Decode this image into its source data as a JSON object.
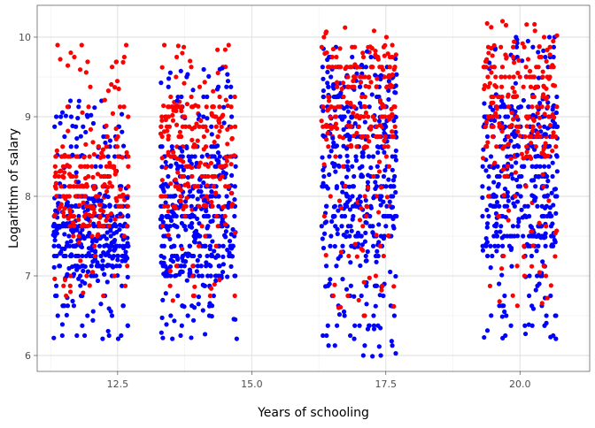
{
  "chart_data": {
    "type": "scatter",
    "title": "",
    "xlabel": "Years of schooling",
    "ylabel": "Logarithm of salary",
    "xlim": [
      11.0,
      21.3
    ],
    "ylim": [
      5.8,
      10.4
    ],
    "x_ticks": [
      12.5,
      15.0,
      17.5,
      20.0
    ],
    "x_tick_labels": [
      "12.5",
      "15.0",
      "17.5",
      "20.0"
    ],
    "y_ticks": [
      6,
      7,
      8,
      9,
      10
    ],
    "y_tick_labels": [
      "6",
      "7",
      "8",
      "9",
      "10"
    ],
    "grid": true,
    "legend": "none",
    "colors": {
      "series_red": "#ff0000",
      "series_blue": "#0000ff",
      "grid_major": "#dedede",
      "grid_minor": "#ebebeb",
      "panel_border": "#333333"
    },
    "groups": [
      {
        "x_range": [
          11.3,
          12.7
        ],
        "blue_y_range": [
          6.2,
          9.2
        ],
        "blue_core": [
          7.0,
          8.0
        ],
        "red_y_range": [
          6.7,
          9.9
        ],
        "red_core": [
          7.6,
          8.6
        ]
      },
      {
        "x_range": [
          13.3,
          14.7
        ],
        "blue_y_range": [
          6.2,
          9.6
        ],
        "blue_core": [
          7.0,
          8.6
        ],
        "red_y_range": [
          6.7,
          9.9
        ],
        "red_core": [
          7.8,
          9.2
        ]
      },
      {
        "x_range": [
          16.3,
          17.7
        ],
        "blue_y_range": [
          6.0,
          9.9
        ],
        "blue_core": [
          7.3,
          9.6
        ],
        "red_y_range": [
          6.5,
          10.1
        ],
        "red_core": [
          8.6,
          9.9
        ]
      },
      {
        "x_range": [
          19.3,
          20.7
        ],
        "blue_y_range": [
          6.2,
          10.0
        ],
        "blue_core": [
          7.3,
          9.2
        ],
        "red_y_range": [
          6.6,
          10.2
        ],
        "red_core": [
          8.4,
          9.9
        ]
      }
    ],
    "series": [
      {
        "color": "#0000ff",
        "points": [
          [
            11.42,
            7.61
          ],
          [
            11.88,
            7.47
          ],
          [
            12.35,
            7.89
          ],
          [
            11.56,
            7.02
          ],
          [
            12.61,
            7.35
          ],
          [
            11.73,
            8.3
          ],
          [
            12.12,
            7.17
          ],
          [
            11.95,
            7.71
          ],
          [
            12.48,
            7.55
          ],
          [
            11.39,
            7.91
          ],
          [
            11.66,
            8.52
          ],
          [
            12.27,
            8.01
          ],
          [
            11.84,
            6.93
          ],
          [
            12.55,
            7.78
          ],
          [
            11.51,
            7.34
          ],
          [
            12.03,
            7.43
          ],
          [
            11.77,
            8.18
          ],
          [
            12.41,
            7.23
          ],
          [
            11.34,
            7.82
          ],
          [
            12.68,
            7.98
          ],
          [
            12.2,
            9.2
          ],
          [
            11.62,
            9.2
          ],
          [
            11.47,
            6.39
          ],
          [
            12.22,
            6.21
          ],
          [
            11.31,
            6.22
          ],
          [
            12.51,
            6.21
          ],
          [
            11.93,
            9.02
          ],
          [
            12.36,
            8.7
          ],
          [
            13.42,
            7.74
          ],
          [
            13.88,
            7.61
          ],
          [
            14.25,
            8.06
          ],
          [
            13.56,
            7.25
          ],
          [
            14.51,
            7.49
          ],
          [
            13.73,
            8.33
          ],
          [
            14.12,
            7.95
          ],
          [
            13.95,
            7.84
          ],
          [
            14.38,
            8.44
          ],
          [
            13.39,
            7.12
          ],
          [
            13.66,
            8.61
          ],
          [
            14.27,
            7.69
          ],
          [
            13.84,
            7.03
          ],
          [
            14.55,
            7.88
          ],
          [
            13.51,
            7.81
          ],
          [
            14.03,
            8.21
          ],
          [
            13.77,
            7.58
          ],
          [
            14.61,
            7.36
          ],
          [
            13.34,
            8.12
          ],
          [
            14.68,
            7.96
          ],
          [
            14.45,
            9.61
          ],
          [
            13.61,
            9.2
          ],
          [
            14.21,
            6.62
          ],
          [
            13.41,
            6.39
          ],
          [
            13.52,
            6.21
          ],
          [
            14.72,
            6.21
          ],
          [
            14.02,
            9.02
          ],
          [
            14.33,
            6.94
          ],
          [
            13.93,
            7.43
          ],
          [
            14.17,
            8.52
          ],
          [
            16.42,
            8.1
          ],
          [
            16.88,
            7.71
          ],
          [
            17.35,
            8.55
          ],
          [
            16.56,
            8.31
          ],
          [
            17.61,
            7.86
          ],
          [
            16.73,
            9.0
          ],
          [
            17.12,
            7.54
          ],
          [
            16.95,
            8.45
          ],
          [
            17.48,
            8.9
          ],
          [
            16.39,
            7.68
          ],
          [
            16.66,
            9.3
          ],
          [
            17.27,
            7.98
          ],
          [
            16.84,
            7.17
          ],
          [
            17.55,
            8.21
          ],
          [
            16.51,
            8.73
          ],
          [
            17.03,
            7.93
          ],
          [
            16.77,
            8.6
          ],
          [
            17.41,
            9.52
          ],
          [
            16.34,
            7.35
          ],
          [
            17.68,
            8.05
          ],
          [
            16.61,
            7.82
          ],
          [
            17.22,
            8.36
          ],
          [
            17.05,
            9.65
          ],
          [
            16.45,
            6.9
          ],
          [
            17.31,
            6.62
          ],
          [
            16.91,
            6.21
          ],
          [
            16.72,
            6.55
          ],
          [
            17.08,
            6.0
          ],
          [
            17.25,
            5.99
          ],
          [
            17.58,
            7.05
          ],
          [
            16.48,
            8.98
          ],
          [
            17.15,
            9.82
          ],
          [
            16.82,
            8.12
          ],
          [
            17.46,
            7.47
          ],
          [
            19.42,
            8.1
          ],
          [
            19.88,
            7.91
          ],
          [
            20.35,
            8.25
          ],
          [
            19.56,
            7.55
          ],
          [
            20.61,
            8.42
          ],
          [
            19.73,
            9.0
          ],
          [
            20.12,
            7.74
          ],
          [
            19.95,
            8.52
          ],
          [
            20.48,
            8.78
          ],
          [
            19.39,
            7.61
          ],
          [
            19.66,
            9.2
          ],
          [
            20.27,
            7.95
          ],
          [
            19.84,
            7.35
          ],
          [
            20.55,
            8.63
          ],
          [
            19.51,
            8.36
          ],
          [
            20.03,
            7.83
          ],
          [
            19.77,
            8.05
          ],
          [
            20.45,
            7.48
          ],
          [
            19.31,
            7.32
          ],
          [
            20.68,
            9.05
          ],
          [
            20.15,
            9.95
          ],
          [
            19.61,
            6.9
          ],
          [
            20.36,
            6.9
          ],
          [
            19.71,
            6.55
          ],
          [
            20.67,
            6.21
          ],
          [
            20.42,
            7.18
          ],
          [
            19.92,
            9.42
          ],
          [
            20.22,
            8.2
          ]
        ]
      },
      {
        "color": "#ff0000",
        "points": [
          [
            11.45,
            7.9
          ],
          [
            11.92,
            8.15
          ],
          [
            12.35,
            8.42
          ],
          [
            11.58,
            7.72
          ],
          [
            12.6,
            8.02
          ],
          [
            11.75,
            8.5
          ],
          [
            12.13,
            8.28
          ],
          [
            11.94,
            9.69
          ],
          [
            12.47,
            8.85
          ],
          [
            11.38,
            9.9
          ],
          [
            11.67,
            7.67
          ],
          [
            12.26,
            9.21
          ],
          [
            11.83,
            9.9
          ],
          [
            12.52,
            9.35
          ],
          [
            11.52,
            6.95
          ],
          [
            12.04,
            8.68
          ],
          [
            11.78,
            7.42
          ],
          [
            12.41,
            9.04
          ],
          [
            11.35,
            8.1
          ],
          [
            12.66,
            9.9
          ],
          [
            11.62,
            6.8
          ],
          [
            12.18,
            7.89
          ],
          [
            13.44,
            8.52
          ],
          [
            13.89,
            8.85
          ],
          [
            14.26,
            9.02
          ],
          [
            13.58,
            8.21
          ],
          [
            14.52,
            9.21
          ],
          [
            13.74,
            9.42
          ],
          [
            14.13,
            8.4
          ],
          [
            13.93,
            8.65
          ],
          [
            14.37,
            9.55
          ],
          [
            13.37,
            9.9
          ],
          [
            13.68,
            8.08
          ],
          [
            14.28,
            9.32
          ],
          [
            13.85,
            9.7
          ],
          [
            14.57,
            9.9
          ],
          [
            13.53,
            6.69
          ],
          [
            14.05,
            8.95
          ],
          [
            13.79,
            7.98
          ],
          [
            14.63,
            8.72
          ],
          [
            13.33,
            9.62
          ],
          [
            14.69,
            7.54
          ],
          [
            14.4,
            6.95
          ],
          [
            13.62,
            8.3
          ],
          [
            16.44,
            9.2
          ],
          [
            16.89,
            9.45
          ],
          [
            17.36,
            9.72
          ],
          [
            16.57,
            8.91
          ],
          [
            17.62,
            9.9
          ],
          [
            16.74,
            10.12
          ],
          [
            17.13,
            9.05
          ],
          [
            16.96,
            9.62
          ],
          [
            17.47,
            8.7
          ],
          [
            16.38,
            10.05
          ],
          [
            16.68,
            9.35
          ],
          [
            17.28,
            10.08
          ],
          [
            16.85,
            8.64
          ],
          [
            17.56,
            9.52
          ],
          [
            16.52,
            9.85
          ],
          [
            17.04,
            7.85
          ],
          [
            16.78,
            9.18
          ],
          [
            17.42,
            6.82
          ],
          [
            16.35,
            8.4
          ],
          [
            17.69,
            9.78
          ],
          [
            16.62,
            6.6
          ],
          [
            17.21,
            9.88
          ],
          [
            17.07,
            7.32
          ],
          [
            16.47,
            8.99
          ],
          [
            19.44,
            9.42
          ],
          [
            19.89,
            9.68
          ],
          [
            20.36,
            9.88
          ],
          [
            19.57,
            9.1
          ],
          [
            20.62,
            9.95
          ],
          [
            19.74,
            10.15
          ],
          [
            20.13,
            8.88
          ],
          [
            19.96,
            9.55
          ],
          [
            20.49,
            9.22
          ],
          [
            19.38,
            9.72
          ],
          [
            19.68,
            8.6
          ],
          [
            20.28,
            10.08
          ],
          [
            19.85,
            9.05
          ],
          [
            20.56,
            9.78
          ],
          [
            19.53,
            8.42
          ],
          [
            20.05,
            9.92
          ],
          [
            19.79,
            7.82
          ],
          [
            20.44,
            8.12
          ],
          [
            19.33,
            9.35
          ],
          [
            20.69,
            10.02
          ],
          [
            19.62,
            6.68
          ],
          [
            20.22,
            7.12
          ],
          [
            20.58,
            6.88
          ],
          [
            19.92,
            8.3
          ]
        ]
      }
    ]
  }
}
